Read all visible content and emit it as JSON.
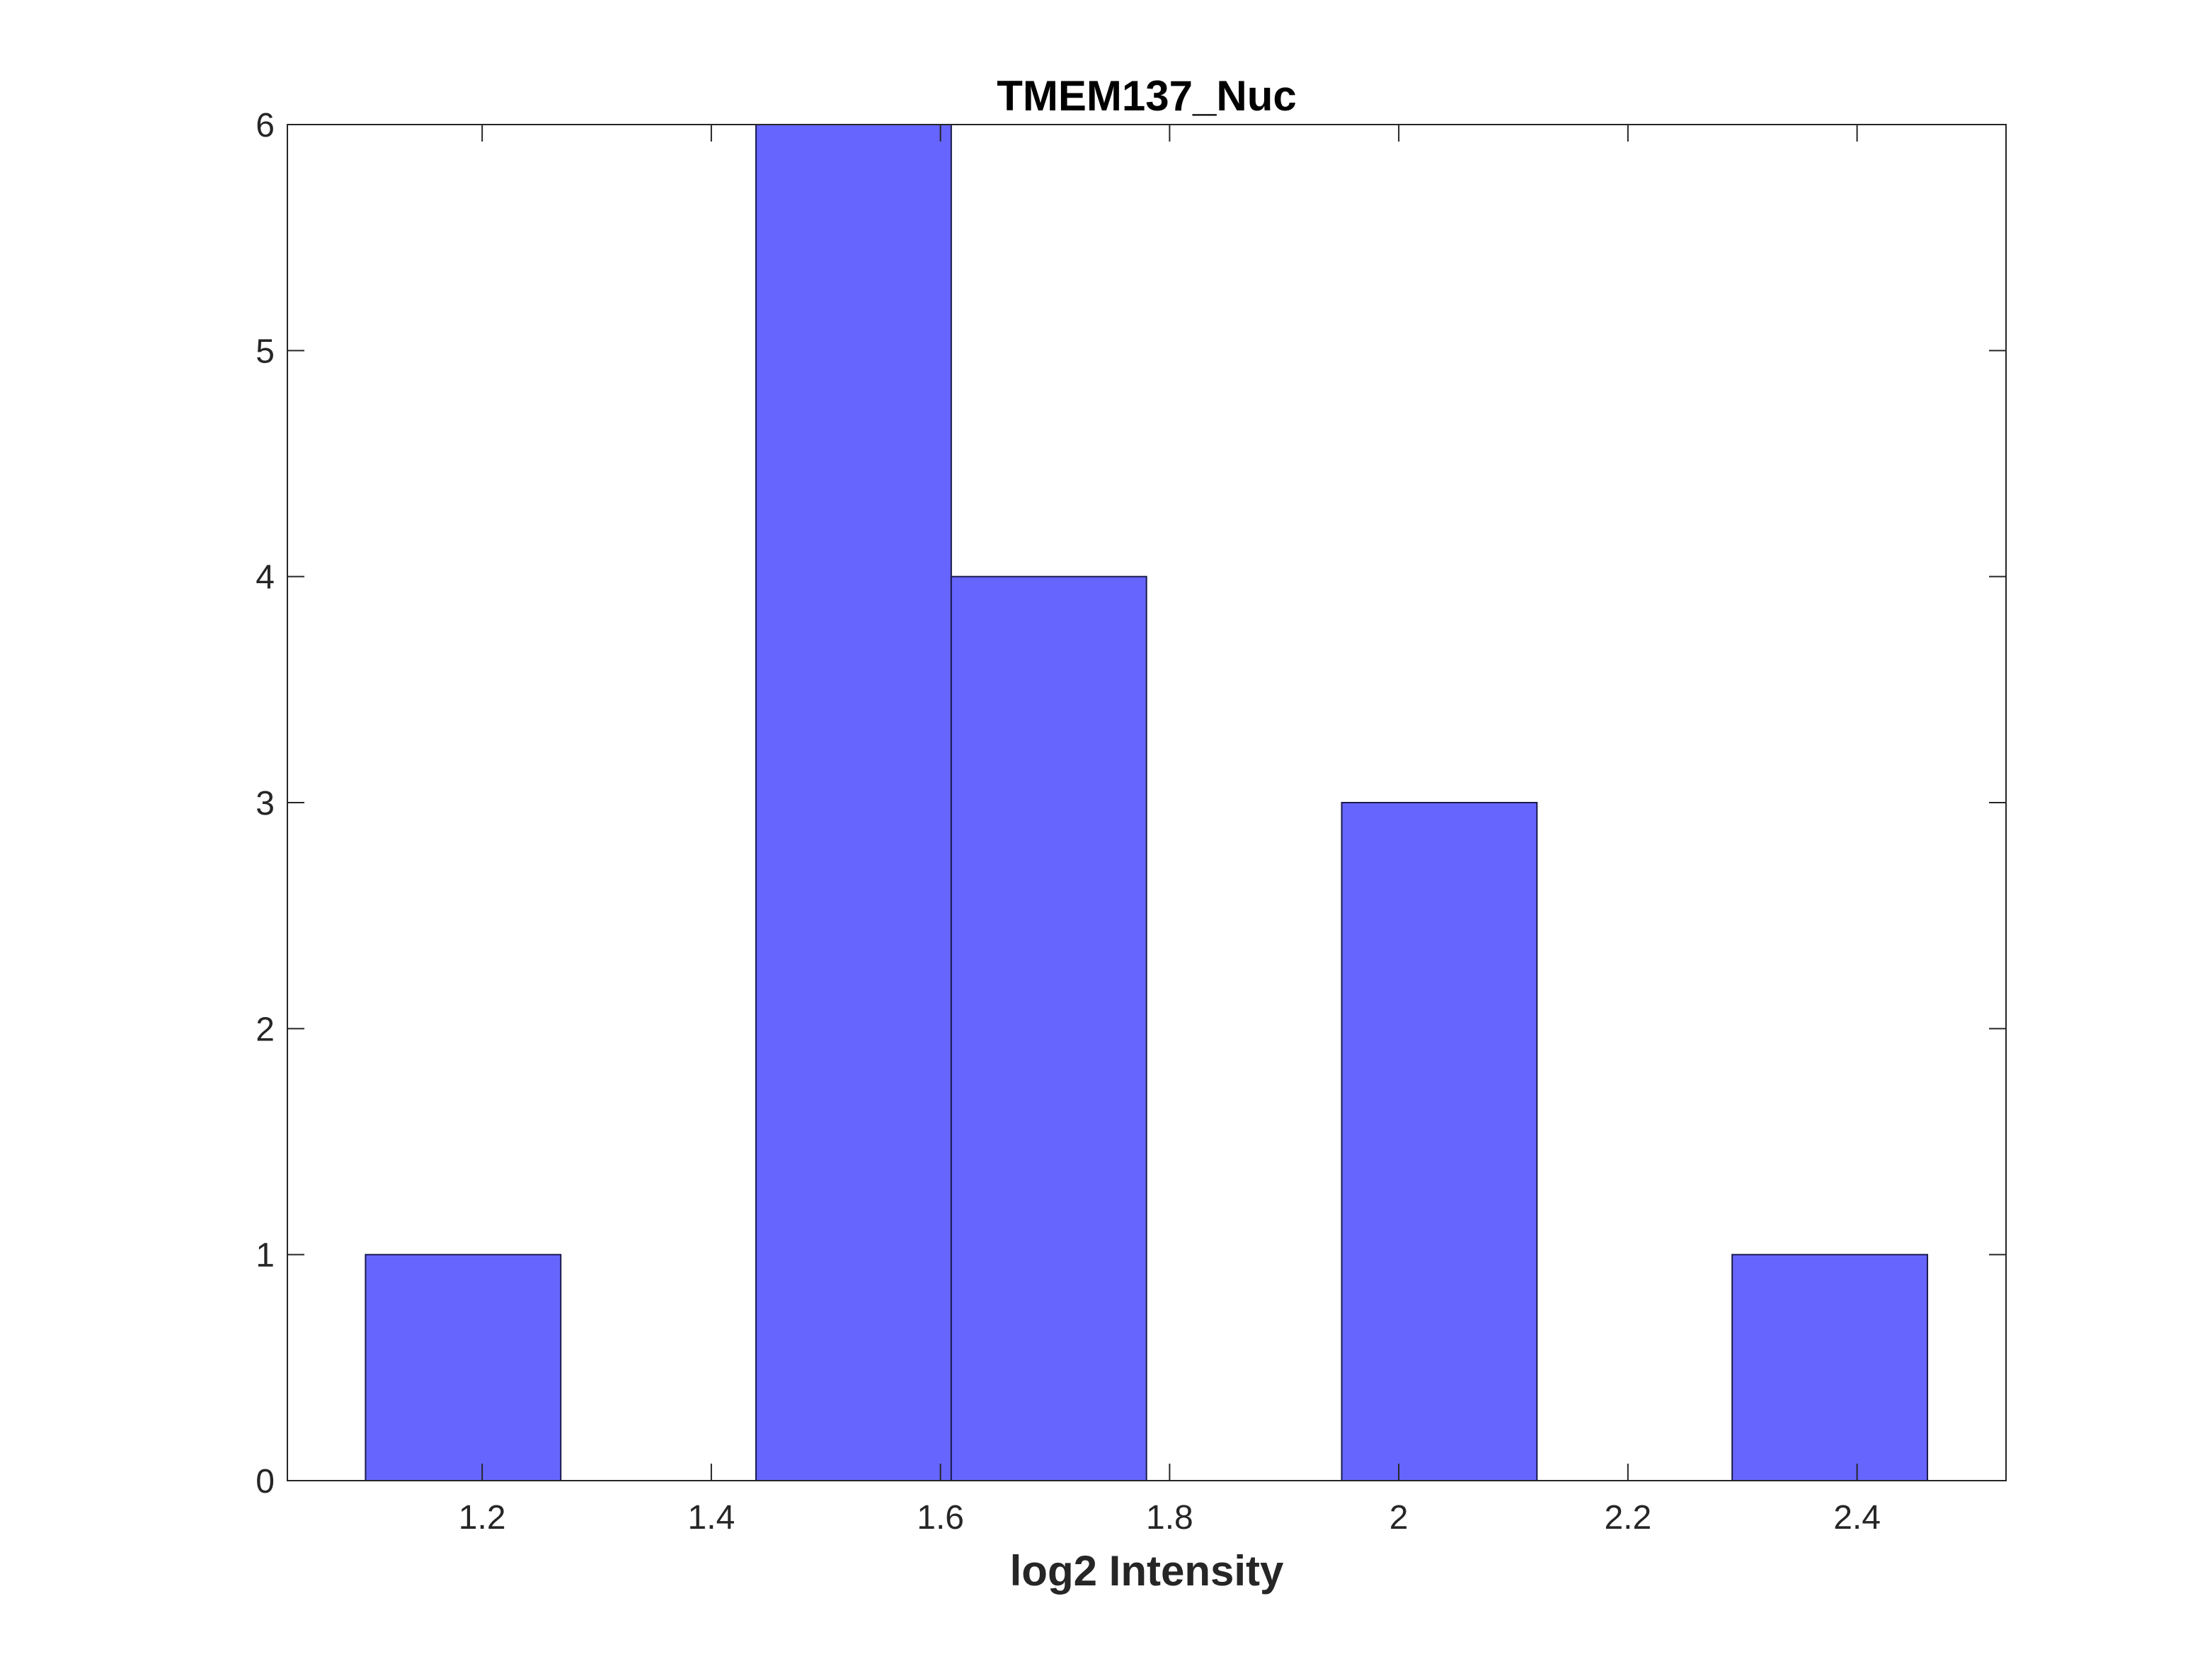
{
  "chart_data": {
    "type": "bar",
    "title": "TMEM137_Nuc",
    "xlabel": "log2 Intensity",
    "ylabel": "",
    "bin_edges": [
      1.0982,
      1.2686,
      1.439,
      1.6094,
      1.7798,
      1.9502,
      2.1206,
      2.291,
      2.4614
    ],
    "counts": [
      1,
      0,
      6,
      4,
      0,
      3,
      0,
      1
    ],
    "xlim": [
      1.03,
      2.53
    ],
    "ylim": [
      0,
      6
    ],
    "xticks": [
      1.2,
      1.4,
      1.6,
      1.8,
      2,
      2.2,
      2.4
    ],
    "xtick_labels": [
      "1.2",
      "1.4",
      "1.6",
      "1.8",
      "2",
      "2.2",
      "2.4"
    ],
    "yticks": [
      0,
      1,
      2,
      3,
      4,
      5,
      6
    ],
    "ytick_labels": [
      "0",
      "1",
      "2",
      "3",
      "4",
      "5",
      "6"
    ],
    "grid": false,
    "legend": "none",
    "colors": {
      "bar_fill": "#6666ff",
      "bar_edge": "#1a1a4d",
      "axes": "#262626",
      "background": "#ffffff"
    }
  }
}
